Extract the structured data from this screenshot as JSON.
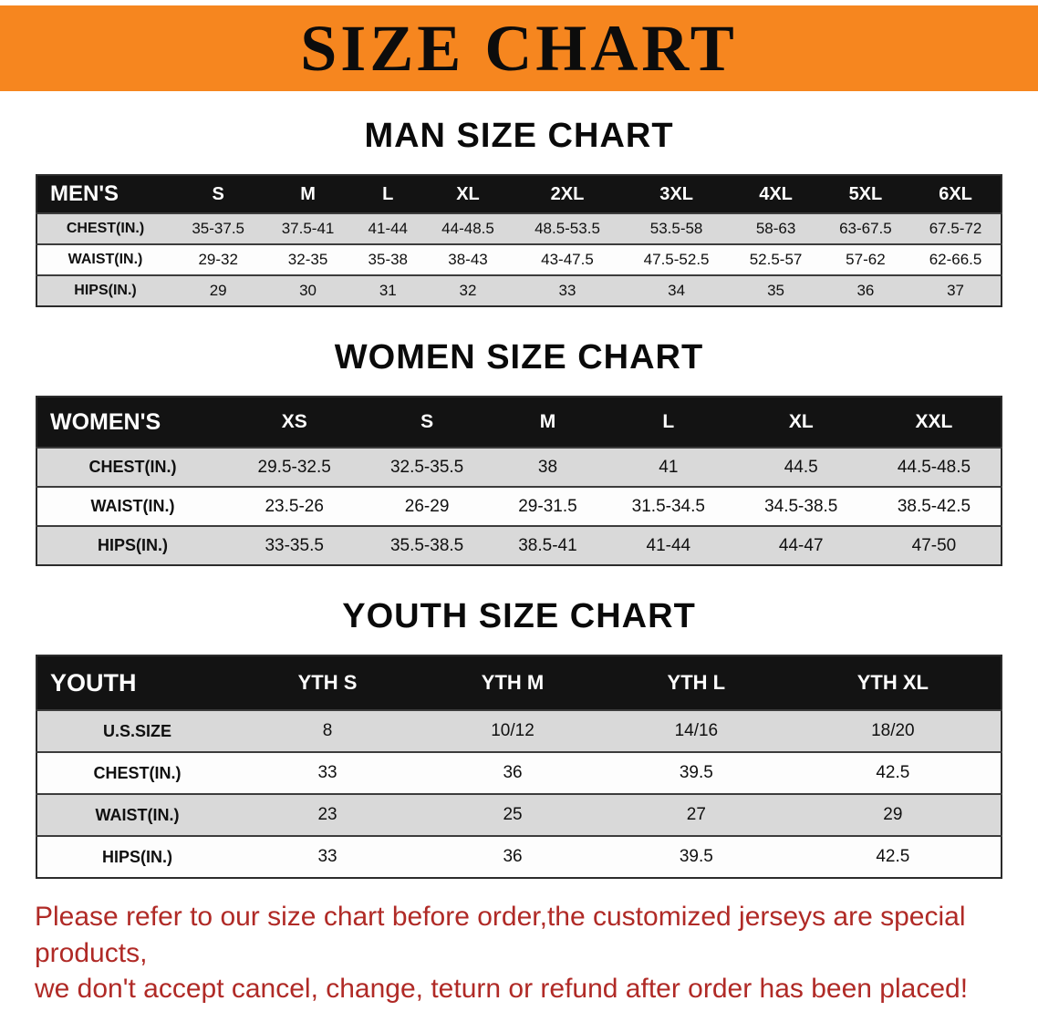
{
  "banner": {
    "title": "SIZE CHART",
    "bg_color": "#F6861F"
  },
  "sections": [
    {
      "heading": "MAN SIZE CHART",
      "table": {
        "header": [
          "MEN'S",
          "S",
          "M",
          "L",
          "XL",
          "2XL",
          "3XL",
          "4XL",
          "5XL",
          "6XL"
        ],
        "rows": [
          {
            "label": "CHEST(IN.)",
            "values": [
              "35-37.5",
              "37.5-41",
              "41-44",
              "44-48.5",
              "48.5-53.5",
              "53.5-58",
              "58-63",
              "63-67.5",
              "67.5-72"
            ]
          },
          {
            "label": "WAIST(IN.)",
            "values": [
              "29-32",
              "32-35",
              "35-38",
              "38-43",
              "43-47.5",
              "47.5-52.5",
              "52.5-57",
              "57-62",
              "62-66.5"
            ]
          },
          {
            "label": "HIPS(IN.)",
            "values": [
              "29",
              "30",
              "31",
              "32",
              "33",
              "34",
              "35",
              "36",
              "37"
            ]
          }
        ]
      }
    },
    {
      "heading": "WOMEN SIZE CHART",
      "table": {
        "header": [
          "WOMEN'S",
          "XS",
          "S",
          "M",
          "L",
          "XL",
          "XXL"
        ],
        "rows": [
          {
            "label": "CHEST(IN.)",
            "values": [
              "29.5-32.5",
              "32.5-35.5",
              "38",
              "41",
              "44.5",
              "44.5-48.5"
            ]
          },
          {
            "label": "WAIST(IN.)",
            "values": [
              "23.5-26",
              "26-29",
              "29-31.5",
              "31.5-34.5",
              "34.5-38.5",
              "38.5-42.5"
            ]
          },
          {
            "label": "HIPS(IN.)",
            "values": [
              "33-35.5",
              "35.5-38.5",
              "38.5-41",
              "41-44",
              "44-47",
              "47-50"
            ]
          }
        ]
      }
    },
    {
      "heading": "YOUTH SIZE CHART",
      "table": {
        "header": [
          "YOUTH",
          "YTH S",
          "YTH M",
          "YTH L",
          "YTH XL"
        ],
        "rows": [
          {
            "label": "U.S.SIZE",
            "values": [
              "8",
              "10/12",
              "14/16",
              "18/20"
            ]
          },
          {
            "label": "CHEST(IN.)",
            "values": [
              "33",
              "36",
              "39.5",
              "42.5"
            ]
          },
          {
            "label": "WAIST(IN.)",
            "values": [
              "23",
              "25",
              "27",
              "29"
            ]
          },
          {
            "label": "HIPS(IN.)",
            "values": [
              "33",
              "36",
              "39.5",
              "42.5"
            ]
          }
        ]
      }
    }
  ],
  "footer": {
    "color": "#b02a26",
    "lines": [
      "Please refer to our size chart before order,the customized jerseys are special products,",
      "we don't accept cancel, change, teturn or refund after order has been placed!"
    ]
  }
}
